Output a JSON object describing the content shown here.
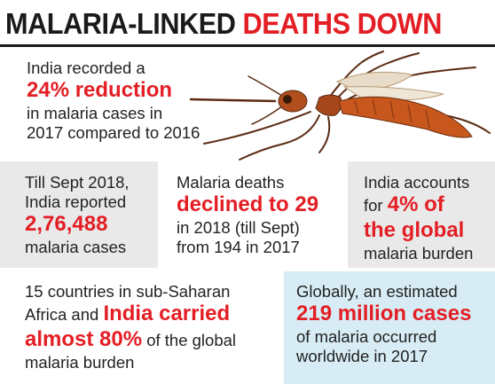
{
  "headline": {
    "dark": "MALARIA-LINKED ",
    "red": "DEATHS DOWN"
  },
  "top": {
    "l1": "India recorded a",
    "l2": "24% reduction",
    "l3": "in malaria cases in",
    "l4": "2017 compared to 2016"
  },
  "box1": {
    "l1": "Till Sept 2018,",
    "l2": "India reported",
    "l3": "2,76,488",
    "l4": "malaria cases"
  },
  "box2": {
    "l1": "Malaria deaths",
    "l2": "declined to 29",
    "l3": "in 2018 (till Sept)",
    "l4": "from 194 in 2017"
  },
  "box3": {
    "l1": "India accounts",
    "l2a": "for ",
    "l2b": "4% of",
    "l3": "the global",
    "l4": "malaria burden"
  },
  "box4": {
    "l1": "15 countries in sub-Saharan",
    "l2a": "Africa and ",
    "l2b": "India carried",
    "l3a": "almost 80%",
    "l3b": " of the global",
    "l4": "malaria burden"
  },
  "box5": {
    "l1": "Globally, an estimated",
    "l2": "219 million cases",
    "l3": "of malaria occurred",
    "l4": "worldwide in 2017"
  },
  "colors": {
    "accent": "#e31e24",
    "text": "#222222",
    "shade": "#e9e9e9",
    "blue": "#d7ecf4"
  },
  "icons": {
    "illustration": "mosquito-illustration"
  }
}
